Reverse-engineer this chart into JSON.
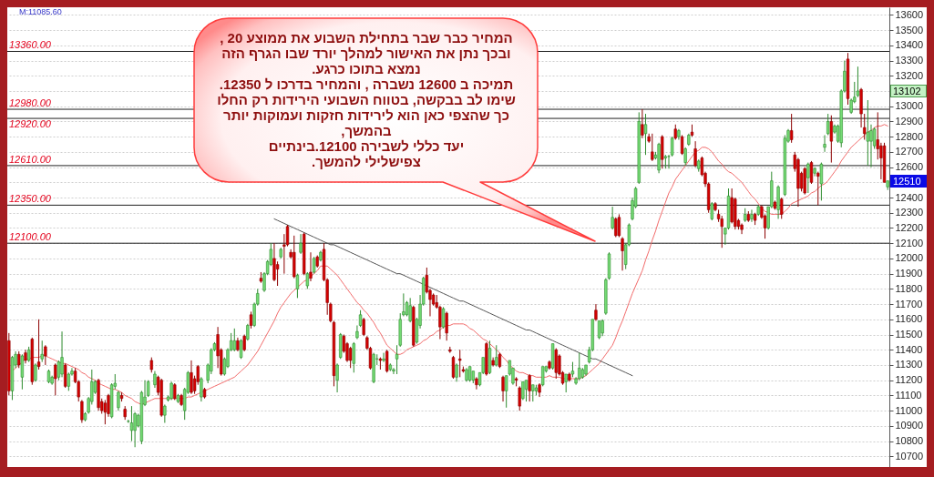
{
  "chart_data": {
    "type": "candlestick",
    "categories": [
      null,
      null,
      null,
      null,
      null,
      null,
      null,
      null,
      null,
      null,
      null,
      null,
      null,
      null,
      null,
      null,
      null,
      null,
      null,
      null,
      null,
      null,
      null,
      null,
      null,
      null,
      null,
      null,
      null,
      null,
      null,
      null,
      null,
      null,
      null,
      null,
      null,
      null,
      null,
      null,
      null,
      null,
      null,
      null,
      null,
      null,
      null,
      null,
      null,
      null,
      null,
      null,
      null,
      null,
      null,
      null,
      null,
      null,
      null,
      null,
      null,
      null,
      null,
      null,
      null,
      null,
      null,
      null,
      null,
      null,
      null,
      null,
      null,
      null,
      null,
      null,
      null,
      null,
      null,
      null,
      null,
      null,
      null,
      null,
      null,
      null,
      null,
      null,
      null,
      null,
      null,
      null,
      null,
      null,
      null,
      null,
      null,
      null,
      null,
      null,
      null,
      null,
      null,
      null,
      null,
      null,
      null,
      null,
      null,
      null,
      null,
      null,
      null,
      null,
      null,
      null,
      null,
      null,
      null,
      null,
      null,
      null,
      null,
      null,
      null,
      null,
      null,
      null,
      null,
      null,
      null,
      null,
      null,
      null,
      null,
      null,
      null,
      null,
      null,
      null,
      null,
      null,
      null,
      null,
      null,
      null,
      null,
      null,
      null,
      null,
      null,
      null,
      null,
      null,
      null,
      null,
      null,
      null,
      null,
      null,
      null,
      null,
      null,
      null,
      null,
      null,
      null,
      null,
      null,
      null,
      null,
      null,
      null,
      null,
      null,
      null,
      null,
      null,
      null,
      null,
      null,
      null,
      null,
      null,
      null,
      null,
      null,
      null,
      null,
      null,
      null,
      null,
      null,
      null,
      null,
      null,
      null,
      null,
      null,
      null,
      null,
      null,
      null,
      null,
      null,
      null,
      null,
      null,
      null,
      null,
      null,
      null,
      null,
      null,
      null,
      null,
      null,
      null,
      null,
      null,
      null,
      null,
      null,
      null,
      null,
      null,
      null,
      null,
      null,
      null,
      null,
      null,
      null,
      null,
      null,
      null,
      null,
      null,
      null,
      null,
      null,
      null,
      null,
      null,
      null,
      null,
      null,
      null,
      null,
      null,
      null,
      null,
      null,
      null,
      null,
      null,
      null,
      null,
      null,
      null,
      null,
      null,
      null,
      null,
      null,
      null
    ],
    "ohlc": [
      [
        11460,
        11510,
        11100,
        11130
      ],
      [
        11130,
        11360,
        11070,
        11350
      ],
      [
        11300,
        11390,
        11280,
        11370
      ],
      [
        11370,
        11390,
        11280,
        11300
      ],
      [
        11220,
        11370,
        11140,
        11360
      ],
      [
        11380,
        11400,
        11310,
        11330
      ],
      [
        11330,
        11420,
        11320,
        11400
      ],
      [
        11470,
        11480,
        11170,
        11190
      ],
      [
        11200,
        11310,
        11190,
        11300
      ],
      [
        11320,
        11600,
        11270,
        11290
      ],
      [
        11340,
        11460,
        11320,
        11370
      ],
      [
        11420,
        11430,
        11300,
        11360
      ],
      [
        11190,
        11270,
        11180,
        11260
      ],
      [
        11180,
        11230,
        11170,
        11220
      ],
      [
        11300,
        11310,
        11100,
        11210
      ],
      [
        11220,
        11330,
        11200,
        11320
      ],
      [
        11240,
        11520,
        11220,
        11350
      ],
      [
        11300,
        11310,
        11150,
        11160
      ],
      [
        11160,
        11250,
        11130,
        11240
      ],
      [
        11240,
        11280,
        11230,
        11260
      ],
      [
        11260,
        11280,
        11180,
        11190
      ],
      [
        11190,
        11200,
        11060,
        11090
      ],
      [
        11060,
        11070,
        10920,
        10940
      ],
      [
        10940,
        10990,
        10930,
        10980
      ],
      [
        10990,
        11090,
        10980,
        11080
      ],
      [
        11060,
        11270,
        11040,
        11190
      ],
      [
        11120,
        11200,
        11110,
        11190
      ],
      [
        11200,
        11210,
        11000,
        11020
      ],
      [
        11060,
        11080,
        10980,
        11000
      ],
      [
        11050,
        11070,
        10910,
        10990
      ],
      [
        11100,
        11110,
        10960,
        10980
      ],
      [
        10960,
        11180,
        10950,
        11170
      ],
      [
        11160,
        11240,
        11140,
        11180
      ],
      [
        11020,
        11130,
        11000,
        11120
      ],
      [
        11100,
        11120,
        11060,
        11080
      ],
      [
        11010,
        11030,
        10940,
        10960
      ],
      [
        10930,
        10940,
        10920,
        10930
      ],
      [
        10870,
        11030,
        10800,
        10920
      ],
      [
        10870,
        10990,
        10760,
        10980
      ],
      [
        10900,
        10980,
        10890,
        10970
      ],
      [
        10800,
        11130,
        10780,
        11120
      ],
      [
        11040,
        11200,
        11030,
        11090
      ],
      [
        11100,
        11200,
        11090,
        11190
      ],
      [
        11330,
        11350,
        11250,
        11270
      ],
      [
        11170,
        11260,
        11150,
        11240
      ],
      [
        11220,
        11230,
        11100,
        11120
      ],
      [
        11200,
        11210,
        10960,
        10970
      ],
      [
        10970,
        11040,
        10920,
        11030
      ],
      [
        11070,
        11100,
        11060,
        11090
      ],
      [
        11080,
        11190,
        11070,
        11180
      ],
      [
        11170,
        11180,
        11070,
        11080
      ],
      [
        11060,
        11110,
        11050,
        11100
      ],
      [
        11100,
        11110,
        11030,
        11040
      ],
      [
        11000,
        11150,
        10940,
        11140
      ],
      [
        11120,
        11260,
        11110,
        11250
      ],
      [
        11250,
        11330,
        11110,
        11120
      ],
      [
        11210,
        11230,
        11110,
        11130
      ],
      [
        11290,
        11300,
        11170,
        11190
      ],
      [
        11090,
        11220,
        11060,
        11210
      ],
      [
        11140,
        11150,
        11080,
        11090
      ],
      [
        11200,
        11310,
        11180,
        11300
      ],
      [
        11260,
        11410,
        11240,
        11400
      ],
      [
        11400,
        11450,
        11390,
        11440
      ],
      [
        11500,
        11550,
        11280,
        11360
      ],
      [
        11400,
        11410,
        11230,
        11240
      ],
      [
        11240,
        11350,
        11230,
        11340
      ],
      [
        11290,
        11410,
        11280,
        11400
      ],
      [
        11400,
        11510,
        11390,
        11460
      ],
      [
        11400,
        11540,
        11390,
        11460
      ],
      [
        11460,
        11480,
        11390,
        11400
      ],
      [
        11350,
        11470,
        11340,
        11460
      ],
      [
        11490,
        11500,
        11390,
        11400
      ],
      [
        11470,
        11570,
        11460,
        11560
      ],
      [
        11630,
        11650,
        11540,
        11560
      ],
      [
        11560,
        11710,
        11550,
        11700
      ],
      [
        11700,
        11800,
        11690,
        11770
      ],
      [
        11870,
        11910,
        11840,
        11850
      ],
      [
        11790,
        11910,
        11780,
        11900
      ],
      [
        11900,
        11990,
        11890,
        11980
      ],
      [
        11960,
        12100,
        11950,
        12060
      ],
      [
        12000,
        12100,
        11850,
        11860
      ],
      [
        11960,
        11980,
        11820,
        11930
      ],
      [
        12010,
        12070,
        12000,
        12060
      ],
      [
        12090,
        12160,
        11900,
        12080
      ],
      [
        12210,
        12220,
        12080,
        12090
      ],
      [
        12040,
        12060,
        12000,
        12010
      ],
      [
        12040,
        12150,
        11870,
        11880
      ],
      [
        11800,
        11900,
        11740,
        11890
      ],
      [
        12040,
        12160,
        12030,
        12100
      ],
      [
        12160,
        12170,
        11890,
        11900
      ],
      [
        11820,
        11910,
        11800,
        11900
      ],
      [
        11910,
        12040,
        11850,
        11870
      ],
      [
        11910,
        12010,
        11900,
        12000
      ],
      [
        12010,
        12020,
        11940,
        11950
      ],
      [
        11990,
        12050,
        11980,
        12040
      ],
      [
        12060,
        12100,
        11850,
        11860
      ],
      [
        11860,
        11870,
        11630,
        11710
      ],
      [
        11700,
        11710,
        11580,
        11590
      ],
      [
        11580,
        11590,
        11160,
        11230
      ],
      [
        11200,
        11310,
        11120,
        11300
      ],
      [
        11350,
        11510,
        11340,
        11500
      ],
      [
        11490,
        11500,
        11380,
        11390
      ],
      [
        11440,
        11450,
        11320,
        11330
      ],
      [
        11410,
        11420,
        11280,
        11330
      ],
      [
        11310,
        11450,
        11250,
        11440
      ],
      [
        11480,
        11560,
        11470,
        11520
      ],
      [
        11560,
        11660,
        11550,
        11630
      ],
      [
        11600,
        11610,
        11490,
        11500
      ],
      [
        11480,
        11490,
        11400,
        11410
      ],
      [
        11410,
        11420,
        11270,
        11280
      ],
      [
        11190,
        11380,
        11180,
        11370
      ],
      [
        11340,
        11370,
        11300,
        11340
      ],
      [
        11340,
        11350,
        11270,
        11330
      ],
      [
        11330,
        11380,
        11320,
        11340
      ],
      [
        11390,
        11400,
        11250,
        11260
      ],
      [
        11270,
        11310,
        11260,
        11300
      ],
      [
        11260,
        11280,
        11240,
        11270
      ],
      [
        11340,
        11430,
        11240,
        11370
      ],
      [
        11430,
        11640,
        11420,
        11600
      ],
      [
        11630,
        11770,
        11620,
        11650
      ],
      [
        11630,
        11720,
        11620,
        11710
      ],
      [
        11590,
        11740,
        11580,
        11690
      ],
      [
        11680,
        11690,
        11420,
        11430
      ],
      [
        11450,
        11610,
        11440,
        11600
      ],
      [
        11560,
        11760,
        11540,
        11700
      ],
      [
        11700,
        11880,
        11690,
        11870
      ],
      [
        11890,
        11940,
        11770,
        11780
      ],
      [
        11790,
        11800,
        11620,
        11730
      ],
      [
        11760,
        11770,
        11690,
        11700
      ],
      [
        11710,
        11760,
        11670,
        11680
      ],
      [
        11680,
        11690,
        11470,
        11550
      ],
      [
        11550,
        11680,
        11540,
        11670
      ],
      [
        11640,
        11650,
        11460,
        11510
      ],
      [
        11400,
        11420,
        11380,
        11390
      ],
      [
        11350,
        11360,
        11210,
        11220
      ],
      [
        11220,
        11310,
        11190,
        11300
      ],
      [
        11340,
        11400,
        11220,
        11330
      ],
      [
        11270,
        11290,
        11250,
        11260
      ],
      [
        11200,
        11280,
        11190,
        11270
      ],
      [
        11200,
        11290,
        11190,
        11290
      ],
      [
        11200,
        11260,
        11180,
        11260
      ],
      [
        11210,
        11220,
        11140,
        11170
      ],
      [
        11170,
        11250,
        11160,
        11250
      ],
      [
        11250,
        11350,
        11240,
        11350
      ],
      [
        11440,
        11450,
        11230,
        11240
      ],
      [
        11250,
        11460,
        11240,
        11410
      ],
      [
        11330,
        11350,
        11290,
        11300
      ],
      [
        11300,
        11430,
        11290,
        11350
      ],
      [
        11370,
        11380,
        11280,
        11290
      ],
      [
        11220,
        11230,
        11060,
        11130
      ],
      [
        11130,
        11230,
        11020,
        11230
      ],
      [
        11240,
        11330,
        11230,
        11330
      ],
      [
        11180,
        11280,
        11170,
        11280
      ],
      [
        11210,
        11220,
        11160,
        11200
      ],
      [
        11150,
        11160,
        11000,
        11030
      ],
      [
        11080,
        11190,
        11070,
        11190
      ],
      [
        11140,
        11200,
        11060,
        11200
      ],
      [
        11230,
        11240,
        11060,
        11130
      ],
      [
        11130,
        11170,
        11060,
        11170
      ],
      [
        11130,
        11170,
        11100,
        11150
      ],
      [
        11170,
        11180,
        11090,
        11120
      ],
      [
        11170,
        11290,
        11160,
        11290
      ],
      [
        11260,
        11290,
        11250,
        11290
      ],
      [
        11320,
        11330,
        11270,
        11280
      ],
      [
        11280,
        11440,
        11270,
        11440
      ],
      [
        11400,
        11410,
        11210,
        11250
      ],
      [
        11360,
        11370,
        11230,
        11240
      ],
      [
        11250,
        11260,
        11170,
        11180
      ],
      [
        11190,
        11240,
        11120,
        11240
      ],
      [
        11240,
        11250,
        11190,
        11200
      ],
      [
        11240,
        11320,
        11220,
        11260
      ],
      [
        11180,
        11220,
        11170,
        11210
      ],
      [
        11210,
        11380,
        11200,
        11280
      ],
      [
        11220,
        11280,
        11210,
        11270
      ],
      [
        11240,
        11300,
        11230,
        11300
      ],
      [
        11320,
        11420,
        11310,
        11400
      ],
      [
        11400,
        11600,
        11390,
        11600
      ],
      [
        11660,
        11700,
        11590,
        11600
      ],
      [
        11480,
        11590,
        11470,
        11590
      ],
      [
        11510,
        11600,
        11490,
        11590
      ],
      [
        11640,
        11870,
        11630,
        11860
      ],
      [
        11870,
        12040,
        11860,
        12030
      ],
      [
        12200,
        12340,
        12190,
        12270
      ],
      [
        12260,
        12270,
        12140,
        12150
      ],
      [
        12270,
        12290,
        12140,
        12150
      ],
      [
        12130,
        12140,
        11920,
        12050
      ],
      [
        11960,
        12100,
        11930,
        12090
      ],
      [
        12090,
        12230,
        12080,
        12220
      ],
      [
        12260,
        12400,
        12250,
        12380
      ],
      [
        12340,
        12470,
        12330,
        12460
      ],
      [
        12500,
        12960,
        12490,
        12900
      ],
      [
        12880,
        12980,
        12790,
        12810
      ],
      [
        12820,
        12950,
        12680,
        12880
      ],
      [
        12800,
        12820,
        12760,
        12770
      ],
      [
        12700,
        12820,
        12640,
        12650
      ],
      [
        12660,
        12700,
        12650,
        12680
      ],
      [
        12580,
        12760,
        12560,
        12750
      ],
      [
        12800,
        12810,
        12590,
        12650
      ],
      [
        12660,
        12680,
        12590,
        12670
      ],
      [
        12670,
        12680,
        12590,
        12670
      ],
      [
        12680,
        12800,
        12670,
        12790
      ],
      [
        12850,
        12880,
        12780,
        12790
      ],
      [
        12800,
        12850,
        12780,
        12840
      ],
      [
        12800,
        12810,
        12680,
        12690
      ],
      [
        12630,
        12730,
        12610,
        12720
      ],
      [
        12750,
        12820,
        12740,
        12810
      ],
      [
        12830,
        12880,
        12800,
        12810
      ],
      [
        12720,
        12770,
        12600,
        12610
      ],
      [
        12590,
        12650,
        12570,
        12640
      ],
      [
        12660,
        12670,
        12540,
        12550
      ],
      [
        12560,
        12570,
        12470,
        12490
      ],
      [
        12490,
        12500,
        12300,
        12320
      ],
      [
        12260,
        12370,
        12250,
        12360
      ],
      [
        12360,
        12370,
        12310,
        12320
      ],
      [
        12290,
        12320,
        12240,
        12260
      ],
      [
        12260,
        12280,
        12070,
        12210
      ],
      [
        12160,
        12200,
        12090,
        12200
      ],
      [
        12200,
        12460,
        12190,
        12410
      ],
      [
        12400,
        12460,
        12230,
        12240
      ],
      [
        12390,
        12400,
        12190,
        12210
      ],
      [
        12250,
        12260,
        12190,
        12210
      ],
      [
        12220,
        12230,
        12160,
        12190
      ],
      [
        12250,
        12330,
        12240,
        12290
      ],
      [
        12290,
        12310,
        12240,
        12250
      ],
      [
        12260,
        12320,
        12240,
        12290
      ],
      [
        12290,
        12300,
        12220,
        12250
      ],
      [
        12290,
        12350,
        12280,
        12340
      ],
      [
        12340,
        12350,
        12260,
        12270
      ],
      [
        12280,
        12290,
        12130,
        12200
      ],
      [
        12200,
        12340,
        12190,
        12340
      ],
      [
        12340,
        12570,
        12330,
        12510
      ],
      [
        12370,
        12380,
        12320,
        12330
      ],
      [
        12320,
        12480,
        12260,
        12470
      ],
      [
        12390,
        12400,
        12260,
        12290
      ],
      [
        12420,
        12810,
        12410,
        12790
      ],
      [
        12770,
        12850,
        12760,
        12840
      ],
      [
        12840,
        12950,
        12760,
        12780
      ],
      [
        12680,
        12700,
        12570,
        12590
      ],
      [
        12650,
        12660,
        12340,
        12460
      ],
      [
        12560,
        12570,
        12440,
        12460
      ],
      [
        12590,
        12600,
        12420,
        12430
      ],
      [
        12530,
        12630,
        12430,
        12620
      ],
      [
        12630,
        12640,
        12490,
        12500
      ],
      [
        12560,
        12600,
        12540,
        12590
      ],
      [
        12560,
        12570,
        12350,
        12540
      ],
      [
        12490,
        12630,
        12380,
        12620
      ],
      [
        12730,
        12810,
        12700,
        12750
      ],
      [
        12820,
        12950,
        12810,
        12900
      ],
      [
        12900,
        12940,
        12630,
        12770
      ],
      [
        12830,
        12880,
        12820,
        12870
      ],
      [
        12770,
        12880,
        12760,
        12870
      ],
      [
        12760,
        13110,
        12730,
        13100
      ],
      [
        13100,
        13300,
        13090,
        13230
      ],
      [
        13310,
        13350,
        13010,
        13050
      ],
      [
        12960,
        13050,
        12950,
        13040
      ],
      [
        13030,
        13160,
        13020,
        13060
      ],
      [
        13070,
        13260,
        13060,
        13100
      ],
      [
        13110,
        13120,
        12860,
        12950
      ],
      [
        12860,
        12950,
        12780,
        12820
      ],
      [
        12770,
        13040,
        12610,
        12830
      ],
      [
        12770,
        12880,
        12600,
        12840
      ],
      [
        12740,
        12860,
        12720,
        12850
      ],
      [
        12780,
        12960,
        12650,
        12720
      ],
      [
        12740,
        12760,
        12520,
        12660
      ],
      [
        12740,
        12760,
        12500,
        12500
      ],
      [
        12470,
        12510,
        12450,
        12510
      ]
    ],
    "series": [
      {
        "type": "line",
        "color": "#f26b6b",
        "values": [
          null,
          11260,
          11280,
          11300,
          11320,
          11340,
          11340,
          11350,
          11350,
          11350,
          11360,
          11360,
          11350,
          11340,
          11330,
          11320,
          11310,
          11310,
          11300,
          11290,
          11280,
          11270,
          11250,
          11240,
          11220,
          11210,
          11200,
          11180,
          11170,
          11160,
          11150,
          11140,
          11140,
          11130,
          11120,
          11100,
          11090,
          11080,
          11060,
          11050,
          11040,
          11050,
          11060,
          11070,
          11080,
          11080,
          11080,
          11080,
          11080,
          11080,
          11080,
          11080,
          11080,
          11080,
          11090,
          11090,
          11100,
          11110,
          11120,
          11130,
          11140,
          11150,
          11160,
          11170,
          11180,
          11190,
          11200,
          11210,
          11220,
          11240,
          11260,
          11280,
          11300,
          11330,
          11360,
          11390,
          11430,
          11470,
          11510,
          11550,
          11590,
          11640,
          11680,
          11710,
          11740,
          11770,
          11790,
          11810,
          11830,
          11850,
          11860,
          11880,
          11900,
          11920,
          11950,
          11950,
          11950,
          11930,
          11910,
          11890,
          11860,
          11830,
          11800,
          11770,
          11740,
          11710,
          11690,
          11660,
          11640,
          11610,
          11580,
          11540,
          11510,
          11470,
          11430,
          11410,
          11390,
          11370,
          11370,
          11380,
          11400,
          11410,
          11420,
          11430,
          11440,
          11460,
          11470,
          11490,
          11500,
          11520,
          11530,
          11550,
          11560,
          11560,
          11570,
          11570,
          11570,
          11570,
          11560,
          11540,
          11530,
          11510,
          11490,
          11470,
          11460,
          11440,
          11420,
          11400,
          11380,
          11350,
          11330,
          11300,
          11280,
          11260,
          11250,
          11250,
          11240,
          11230,
          11230,
          11220,
          11220,
          11220,
          11220,
          11230,
          11220,
          11220,
          11220,
          11210,
          11210,
          11210,
          11210,
          11210,
          11210,
          11220,
          11230,
          11250,
          11270,
          11290,
          11310,
          11340,
          11370,
          11400,
          11430,
          11480,
          11540,
          11590,
          11650,
          11710,
          11770,
          11820,
          11870,
          11920,
          11990,
          12050,
          12120,
          12180,
          12250,
          12310,
          12370,
          12430,
          12470,
          12520,
          12550,
          12580,
          12610,
          12640,
          12670,
          12700,
          12710,
          12730,
          12730,
          12720,
          12700,
          12670,
          12640,
          12620,
          12590,
          12570,
          12560,
          12540,
          12520,
          12500,
          12470,
          12440,
          12410,
          12390,
          12360,
          12330,
          12310,
          12300,
          12290,
          12290,
          12290,
          12290,
          12310,
          12330,
          12360,
          12370,
          12380,
          12390,
          12400,
          12410,
          12430,
          12440,
          12460,
          12480,
          12490,
          12510,
          12540,
          12570,
          12600,
          12640,
          12670,
          12700,
          12730,
          12750,
          12770,
          12790,
          12810,
          12830,
          12840,
          12860,
          12870,
          12870,
          12880,
          12870
        ]
      },
      {
        "type": "line",
        "color": "#555555",
        "values": [
          null,
          null,
          null,
          null,
          null,
          null,
          null,
          null,
          null,
          null,
          null,
          null,
          null,
          null,
          null,
          null,
          null,
          null,
          null,
          null,
          null,
          null,
          null,
          null,
          null,
          null,
          null,
          null,
          null,
          null,
          null,
          null,
          null,
          null,
          null,
          null,
          null,
          null,
          null,
          null,
          null,
          null,
          null,
          null,
          null,
          null,
          null,
          null,
          null,
          null,
          null,
          null,
          null,
          null,
          null,
          null,
          null,
          null,
          null,
          null,
          null,
          null,
          null,
          null,
          null,
          null,
          null,
          null,
          null,
          null,
          null,
          null,
          null,
          null,
          null,
          null,
          null,
          null,
          null,
          null,
          12260,
          12250,
          12240,
          12230,
          12220,
          12210,
          12200,
          12190,
          12180,
          12170,
          12160,
          12150,
          12140,
          12130,
          12120,
          12110,
          12100,
          12090,
          12090,
          12080,
          12070,
          12060,
          12050,
          12040,
          12030,
          12020,
          12010,
          12000,
          11990,
          11980,
          11970,
          11960,
          11950,
          11940,
          11930,
          11920,
          11910,
          11900,
          11900,
          11890,
          11880,
          11870,
          11860,
          11850,
          11840,
          11830,
          11820,
          11810,
          11800,
          11790,
          11780,
          11770,
          11760,
          11750,
          11740,
          11730,
          11720,
          11720,
          11710,
          11700,
          11690,
          11680,
          11670,
          11660,
          11650,
          11640,
          11630,
          11620,
          11610,
          11600,
          11590,
          11580,
          11570,
          11560,
          11550,
          11540,
          11530,
          11530,
          11520,
          11510,
          11500,
          11490,
          11480,
          11470,
          11460,
          11450,
          11440,
          11430,
          11420,
          11410,
          11400,
          11390,
          11380,
          11370,
          11360,
          11350,
          11340,
          11340,
          11330,
          11320,
          11310,
          11300,
          11290,
          11280,
          11270,
          11260,
          11250,
          11240,
          11230,
          null,
          null,
          null,
          null,
          null,
          null,
          null,
          null,
          null,
          null,
          null,
          null,
          null,
          null,
          null,
          null,
          null,
          null,
          null,
          null,
          null,
          null,
          null,
          null,
          null,
          null,
          null,
          null,
          null,
          null,
          null,
          null,
          null,
          null,
          null,
          null,
          null,
          null,
          null,
          null,
          null,
          null,
          null,
          null,
          null,
          null,
          null,
          null,
          null,
          null,
          null,
          null,
          null,
          null,
          null,
          null,
          null,
          null,
          null,
          null,
          null,
          null,
          null,
          null,
          null,
          null,
          null,
          null,
          null,
          null,
          null,
          null,
          null,
          null,
          null,
          null,
          null
        ]
      }
    ],
    "ylim": [
      10630,
      13650
    ],
    "yticks": [
      10700,
      10800,
      10900,
      11000,
      11100,
      11200,
      11300,
      11400,
      11500,
      11600,
      11700,
      11800,
      11900,
      12000,
      12100,
      12200,
      12300,
      12400,
      {
        "value": 12500,
        "label": null
      },
      12600,
      12700,
      12800,
      12900,
      13000,
      {
        "value": 13100,
        "label": null
      },
      13200,
      13300,
      13400,
      13500,
      13600
    ],
    "ref_lines": [
      {
        "axis": "y",
        "value": 13360,
        "label": "13360.00",
        "color": "#222222"
      },
      {
        "axis": "y",
        "value": 12980,
        "label": "12980.00",
        "color": "#222222"
      },
      {
        "axis": "y",
        "value": 12920,
        "label": "12920.00",
        "color": "#222222"
      },
      {
        "axis": "y",
        "value": 12610,
        "label": "12610.00",
        "color": "#222222"
      },
      {
        "axis": "y",
        "value": 12350,
        "label": "12350.00",
        "color": "#222222"
      },
      {
        "axis": "y",
        "value": 12100,
        "label": "12100.00",
        "color": "#222222"
      }
    ],
    "annotations": [
      "M:11085.60",
      "המחיר כבר שבר בתחילת השבוע את ממוצע 20 ,\nובכך נתן את האישור למהלך יורד שבו הגרף הזה\nנמצא בתוכו כרגע.\nתמיכה ב 12600 נשברה , והמחיר בדרכו ל 12350.\nשימו לב בבקשה, בטווח השבועי הירידות רק החלו\nכך שהצפי כאן הוא לירידות חזקות ועמוקות יותר\nבהמשך,\nיעד כללי לשבירה 12100.בינתיים\nצפישלילי להמשך.",
      {
        "text": "13102",
        "y": 13102
      },
      {
        "text": "12510",
        "y": 12510
      }
    ],
    "grid": "y",
    "tick_labels": "y"
  }
}
